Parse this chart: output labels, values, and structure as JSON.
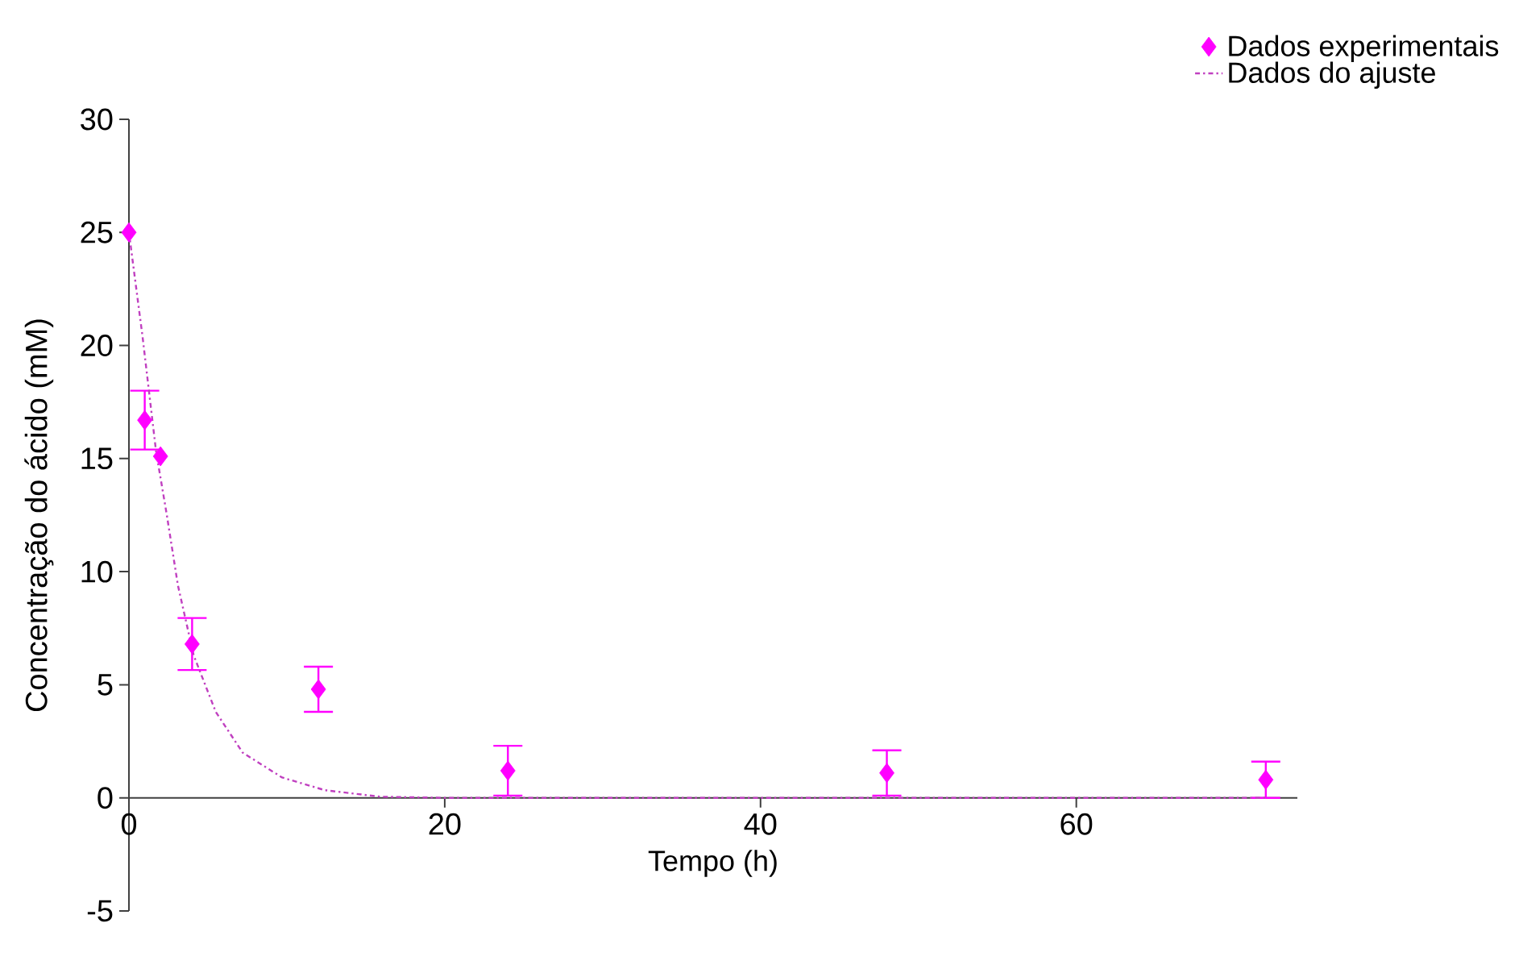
{
  "chart_data": {
    "type": "scatter",
    "xlabel": "Tempo (h)",
    "ylabel": "Concentração do ácido  (mM)",
    "xlim": [
      0,
      74
    ],
    "ylim": [
      -5,
      30
    ],
    "xticks": [
      0,
      20,
      40,
      60
    ],
    "yticks": [
      -5,
      0,
      5,
      10,
      15,
      20,
      25,
      30
    ],
    "legend": "top right",
    "grid": false,
    "series": [
      {
        "name": "Dados experimentais",
        "color": "#ff00ff",
        "marker": "diamond",
        "x": [
          0,
          1,
          2,
          4,
          12,
          24,
          48,
          72
        ],
        "values": [
          25,
          16.7,
          15.1,
          6.8,
          4.8,
          1.2,
          1.1,
          0.8
        ],
        "errors": [
          null,
          1.3,
          null,
          1.15,
          1.0,
          1.1,
          1.0,
          0.8
        ]
      },
      {
        "name": "Dados do ajuste",
        "type": "line",
        "color": "#c040c0",
        "line_style": "dashed",
        "marker": "none",
        "x": [
          0,
          0.86,
          1.72,
          2.4,
          3.1,
          4.1,
          5.5,
          7.2,
          9.7,
          12.4,
          15.9,
          20,
          72
        ],
        "values": [
          25,
          20.4,
          15.3,
          12.5,
          9.4,
          6.3,
          3.8,
          2.0,
          0.9,
          0.34,
          0.05,
          0,
          0
        ]
      }
    ]
  }
}
